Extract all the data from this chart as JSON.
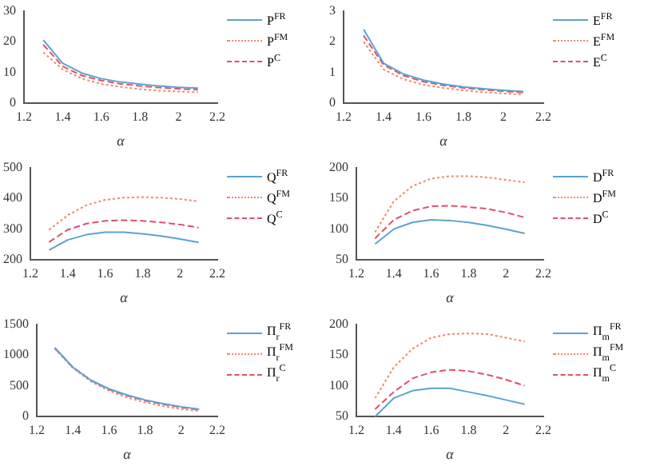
{
  "chart_data": [
    {
      "type": "line",
      "xlabel": "α",
      "x": [
        1.3,
        1.4,
        1.5,
        1.6,
        1.7,
        1.8,
        1.9,
        2,
        2.1
      ],
      "xlim": [
        1.2,
        2.2
      ],
      "xticks": [
        1.2,
        1.4,
        1.6,
        1.8,
        2,
        2.2
      ],
      "ylim": [
        0,
        30
      ],
      "yticks": [
        0,
        10,
        20,
        30
      ],
      "grid": false,
      "legend": "right",
      "marker": "none",
      "series": [
        {
          "name": "P$^{FR}$",
          "color": "#5ba3d0",
          "line_style": "solid",
          "values": [
            20.5,
            13,
            9.8,
            8,
            6.9,
            6.2,
            5.6,
            5.2,
            4.9
          ]
        },
        {
          "name": "P$^{FM}$",
          "color": "#f08a6a",
          "line_style": "dotted",
          "values": [
            16.5,
            11,
            8,
            6.3,
            5.3,
            4.6,
            4.1,
            3.8,
            3.6
          ]
        },
        {
          "name": "P$^{C}$",
          "color": "#e0506a",
          "line_style": "dashed",
          "values": [
            19,
            12,
            9,
            7.4,
            6.3,
            5.6,
            5.1,
            4.7,
            4.4
          ]
        }
      ]
    },
    {
      "type": "line",
      "xlabel": "α",
      "x": [
        1.3,
        1.4,
        1.5,
        1.6,
        1.7,
        1.8,
        1.9,
        2,
        2.1
      ],
      "xlim": [
        1.2,
        2.2
      ],
      "xticks": [
        1.2,
        1.4,
        1.6,
        1.8,
        2,
        2.2
      ],
      "ylim": [
        0,
        3
      ],
      "yticks": [
        0,
        1,
        2,
        3
      ],
      "grid": false,
      "legend": "right",
      "marker": "none",
      "series": [
        {
          "name": "E$^{FR}$",
          "color": "#5ba3d0",
          "line_style": "solid",
          "values": [
            2.4,
            1.3,
            0.95,
            0.75,
            0.62,
            0.53,
            0.47,
            0.42,
            0.38
          ]
        },
        {
          "name": "E$^{FM}$",
          "color": "#f08a6a",
          "line_style": "dotted",
          "values": [
            2,
            1.1,
            0.78,
            0.6,
            0.5,
            0.42,
            0.36,
            0.32,
            0.28
          ]
        },
        {
          "name": "E$^{C}$",
          "color": "#e0506a",
          "line_style": "dashed",
          "values": [
            2.2,
            1.25,
            0.9,
            0.7,
            0.58,
            0.5,
            0.44,
            0.39,
            0.35
          ]
        }
      ]
    },
    {
      "type": "line",
      "xlabel": "α",
      "x": [
        1.3,
        1.4,
        1.5,
        1.6,
        1.7,
        1.8,
        1.9,
        2,
        2.1
      ],
      "xlim": [
        1.2,
        2.2
      ],
      "xticks": [
        1.2,
        1.4,
        1.6,
        1.8,
        2,
        2.2
      ],
      "ylim": [
        200,
        500
      ],
      "yticks": [
        200,
        300,
        400,
        500
      ],
      "grid": false,
      "legend": "right",
      "marker": "none",
      "series": [
        {
          "name": "Q$^{FR}$",
          "color": "#5ba3d0",
          "line_style": "solid",
          "values": [
            232,
            265,
            282,
            290,
            290,
            285,
            278,
            268,
            257
          ]
        },
        {
          "name": "Q$^{FM}$",
          "color": "#f08a6a",
          "line_style": "dotted",
          "values": [
            298,
            345,
            378,
            395,
            402,
            404,
            402,
            398,
            390
          ]
        },
        {
          "name": "Q$^{C}$",
          "color": "#e0506a",
          "line_style": "dashed",
          "values": [
            258,
            298,
            318,
            327,
            329,
            327,
            322,
            315,
            305
          ]
        }
      ]
    },
    {
      "type": "line",
      "xlabel": "α",
      "x": [
        1.3,
        1.4,
        1.5,
        1.6,
        1.7,
        1.8,
        1.9,
        2,
        2.1
      ],
      "xlim": [
        1.2,
        2.2
      ],
      "xticks": [
        1.2,
        1.4,
        1.6,
        1.8,
        2,
        2.2
      ],
      "ylim": [
        50,
        200
      ],
      "yticks": [
        50,
        100,
        150,
        200
      ],
      "grid": false,
      "legend": "right",
      "marker": "none",
      "series": [
        {
          "name": "D$^{FR}$",
          "color": "#5ba3d0",
          "line_style": "solid",
          "values": [
            76,
            100,
            111,
            115,
            114,
            111,
            106,
            100,
            93
          ]
        },
        {
          "name": "D$^{FM}$",
          "color": "#f08a6a",
          "line_style": "dotted",
          "values": [
            95,
            145,
            170,
            182,
            186,
            186,
            184,
            180,
            176
          ]
        },
        {
          "name": "D$^{C}$",
          "color": "#e0506a",
          "line_style": "dashed",
          "values": [
            85,
            115,
            130,
            137,
            138,
            136,
            133,
            127,
            119
          ]
        }
      ]
    },
    {
      "type": "line",
      "xlabel": "α",
      "x": [
        1.3,
        1.4,
        1.5,
        1.6,
        1.7,
        1.8,
        1.9,
        2,
        2.1
      ],
      "xlim": [
        1.2,
        2.2
      ],
      "xticks": [
        1.2,
        1.4,
        1.6,
        1.8,
        2,
        2.2
      ],
      "ylim": [
        0,
        1500
      ],
      "yticks": [
        0,
        500,
        1000,
        1500
      ],
      "grid": false,
      "legend": "right",
      "marker": "none",
      "series": [
        {
          "name": "Π$_{r}$$^{FR}$",
          "color": "#5ba3d0",
          "line_style": "solid",
          "values": [
            1120,
            800,
            590,
            450,
            350,
            270,
            210,
            160,
            120
          ]
        },
        {
          "name": "Π$_{r}$$^{FM}$",
          "color": "#f08a6a",
          "line_style": "dotted",
          "values": [
            1100,
            790,
            570,
            420,
            310,
            230,
            170,
            120,
            90
          ]
        },
        {
          "name": "Π$_{r}$$^{C}$",
          "color": "#e0506a",
          "line_style": "dashed",
          "values": [
            1110,
            800,
            590,
            440,
            340,
            260,
            200,
            150,
            110
          ]
        }
      ]
    },
    {
      "type": "line",
      "xlabel": "α",
      "x": [
        1.3,
        1.4,
        1.5,
        1.6,
        1.7,
        1.8,
        1.9,
        2,
        2.1
      ],
      "xlim": [
        1.2,
        2.2
      ],
      "xticks": [
        1.2,
        1.4,
        1.6,
        1.8,
        2,
        2.2
      ],
      "ylim": [
        50,
        200
      ],
      "yticks": [
        50,
        100,
        150,
        200
      ],
      "grid": false,
      "legend": "right",
      "marker": "none",
      "series": [
        {
          "name": "Π$_{m}$$^{FR}$",
          "color": "#5ba3d0",
          "line_style": "solid",
          "values": [
            50,
            80,
            92,
            96,
            96,
            90,
            84,
            77,
            70
          ]
        },
        {
          "name": "Π$_{m}$$^{FM}$",
          "color": "#f08a6a",
          "line_style": "dotted",
          "values": [
            80,
            130,
            160,
            178,
            184,
            185,
            184,
            178,
            172
          ]
        },
        {
          "name": "Π$_{m}$$^{C}$",
          "color": "#e0506a",
          "line_style": "dashed",
          "values": [
            62,
            90,
            112,
            122,
            126,
            124,
            118,
            110,
            100
          ]
        }
      ]
    }
  ]
}
